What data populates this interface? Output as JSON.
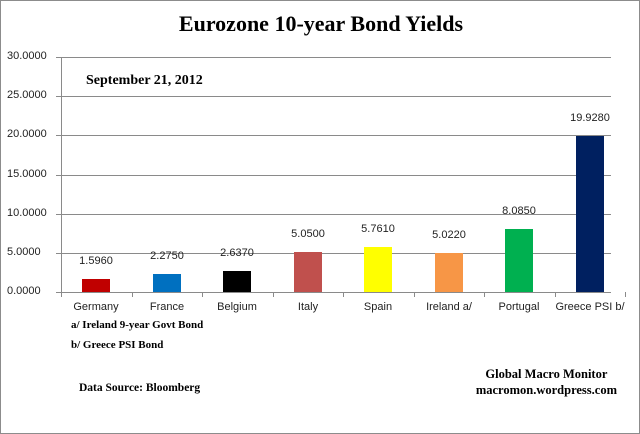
{
  "chart_data": {
    "type": "bar",
    "title": "Eurozone 10-year Bond Yields",
    "subtitle": "September 21, 2012",
    "categories": [
      "Germany",
      "France",
      "Belgium",
      "Italy",
      "Spain",
      "Ireland  a/",
      "Portugal",
      "Greece PSI b/"
    ],
    "values": [
      1.596,
      2.275,
      2.637,
      5.05,
      5.761,
      5.022,
      8.085,
      19.928
    ],
    "value_labels": [
      "1.5960",
      "2.2750",
      "2.6370",
      "5.0500",
      "5.7610",
      "5.0220",
      "8.0850",
      "19.9280"
    ],
    "colors": [
      "#c00000",
      "#0070c0",
      "#000000",
      "#c0504d",
      "#ffff00",
      "#f79646",
      "#00b050",
      "#002060"
    ],
    "xlabel": "",
    "ylabel": "",
    "ylim": [
      0,
      30
    ],
    "yticks": [
      "30.0000",
      "25.0000",
      "20.0000",
      "15.0000",
      "10.0000",
      "5.0000",
      "0.0000"
    ],
    "grid": true,
    "legend": "none",
    "annotations": [
      "a/ Ireland 9-year Govt Bond",
      "b/  Greece  PSI Bond"
    ]
  },
  "footer": {
    "source": "Data Source:  Bloomberg",
    "brand_line1": "Global Macro Monitor",
    "brand_line2": "macromon.wordpress.com"
  }
}
